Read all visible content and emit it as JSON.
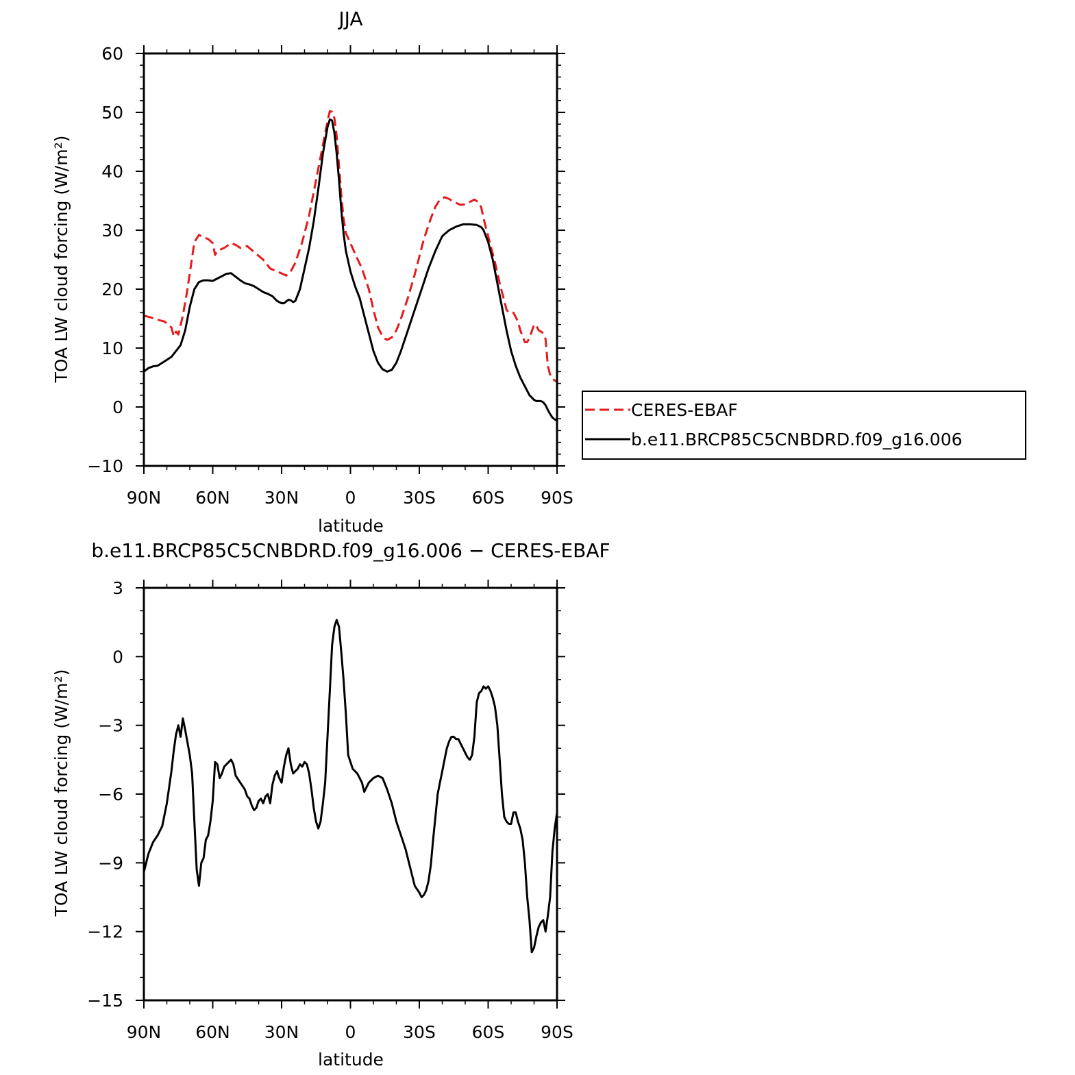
{
  "colors": {
    "observation": "#e41a1c",
    "model": "#000000",
    "axes": "#000000",
    "background": "#ffffff"
  },
  "legend": {
    "placement": "right of top panel",
    "entries": [
      {
        "label": "CERES-EBAF",
        "color": "#e41a1c",
        "style": "dashed"
      },
      {
        "label": "b.e11.BRCP85C5CNBDRD.f09_g16.006",
        "color": "#000000",
        "style": "solid"
      }
    ]
  },
  "chart_data": [
    {
      "type": "line",
      "title": "JJA",
      "xlabel": "latitude",
      "ylabel": "TOA LW cloud forcing (W/m²)",
      "xlim": [
        90,
        -90
      ],
      "ylim": [
        -10,
        60
      ],
      "x_ticks": [
        90,
        60,
        30,
        0,
        -30,
        -60,
        -90
      ],
      "x_tick_labels": [
        "90N",
        "60N",
        "30N",
        "0",
        "30S",
        "60S",
        "90S"
      ],
      "y_ticks": [
        -10,
        0,
        10,
        20,
        30,
        40,
        50,
        60
      ],
      "y_tick_labels": [
        "−10",
        "0",
        "10",
        "20",
        "30",
        "40",
        "50",
        "60"
      ],
      "grid": false,
      "series": [
        {
          "name": "CERES-EBAF",
          "color": "#e41a1c",
          "style": "dashed",
          "x": [
            90,
            87,
            84,
            81,
            78,
            77,
            76,
            75,
            73,
            71,
            68,
            66,
            64,
            62,
            60,
            59,
            58,
            55,
            52,
            50,
            48,
            45,
            42,
            38,
            35,
            32,
            29,
            28,
            26,
            24,
            21,
            18,
            15,
            12,
            10,
            9,
            8,
            7,
            6,
            5,
            4,
            3,
            2,
            0,
            -2,
            -5,
            -8,
            -10,
            -12,
            -14,
            -15,
            -16,
            -18,
            -20,
            -22,
            -25,
            -28,
            -30,
            -32,
            -35,
            -37,
            -39,
            -41,
            -43,
            -45,
            -48,
            -50,
            -52,
            -54,
            -56,
            -57,
            -58,
            -59,
            -60,
            -61,
            -62,
            -63,
            -65,
            -67,
            -68,
            -69,
            -71,
            -73,
            -74,
            -76,
            -77,
            -78,
            -79,
            -80,
            -81,
            -82,
            -83,
            -84,
            -85,
            -86,
            -87,
            -88,
            -89,
            -90
          ],
          "y": [
            15.5,
            15.2,
            14.8,
            14.5,
            13.5,
            12.0,
            12.8,
            12.3,
            15.5,
            20.0,
            28.0,
            29.2,
            28.8,
            28.5,
            27.8,
            25.8,
            26.5,
            27.0,
            27.8,
            27.5,
            27.0,
            27.3,
            26.3,
            25.0,
            23.5,
            23.0,
            22.5,
            22.3,
            23.0,
            24.5,
            28.0,
            32.5,
            38.5,
            44.5,
            48.5,
            50.2,
            50.1,
            49.0,
            46.0,
            41.0,
            36.0,
            32.0,
            29.5,
            27.8,
            26.0,
            23.5,
            20.0,
            16.5,
            13.5,
            12.0,
            11.6,
            11.4,
            11.8,
            13.0,
            15.0,
            18.5,
            22.5,
            25.5,
            28.5,
            32.0,
            34.0,
            35.2,
            35.6,
            35.3,
            34.8,
            34.3,
            34.4,
            34.8,
            35.2,
            34.7,
            33.8,
            32.0,
            30.5,
            29.0,
            27.5,
            26.0,
            24.5,
            21.0,
            18.0,
            16.5,
            16.0,
            16.0,
            14.5,
            13.0,
            11.0,
            11.0,
            11.8,
            12.8,
            14.0,
            13.8,
            13.0,
            12.8,
            12.5,
            11.5,
            7.0,
            5.5,
            4.8,
            4.5,
            4.3
          ]
        },
        {
          "name": "b.e11.BRCP85C5CNBDRD.f09_g16.006",
          "color": "#000000",
          "style": "solid",
          "x": [
            90,
            89,
            88,
            86,
            84,
            82,
            80,
            78,
            76,
            74,
            72,
            70,
            68,
            66,
            64,
            62,
            60,
            58,
            56,
            54,
            52,
            50,
            48,
            46,
            44,
            42,
            40,
            38,
            36,
            34,
            32,
            30,
            29,
            28,
            27,
            26,
            25,
            24,
            22,
            20,
            18,
            16,
            14,
            12,
            10,
            9,
            8,
            7,
            6,
            5,
            4,
            3,
            2,
            0,
            -2,
            -4,
            -6,
            -8,
            -10,
            -12,
            -14,
            -16,
            -18,
            -20,
            -22,
            -25,
            -28,
            -31,
            -34,
            -37,
            -40,
            -43,
            -46,
            -49,
            -52,
            -55,
            -57,
            -58,
            -59,
            -60,
            -62,
            -64,
            -66,
            -68,
            -70,
            -72,
            -74,
            -76,
            -78,
            -80,
            -81,
            -82,
            -83,
            -84,
            -85,
            -86,
            -87,
            -88,
            -89,
            -90
          ],
          "y": [
            6.0,
            6.3,
            6.6,
            6.9,
            7.0,
            7.5,
            8.0,
            8.5,
            9.5,
            10.5,
            13.0,
            17.0,
            20.0,
            21.2,
            21.5,
            21.5,
            21.4,
            21.8,
            22.2,
            22.6,
            22.7,
            22.1,
            21.5,
            21.0,
            20.8,
            20.5,
            20.0,
            19.5,
            19.2,
            18.8,
            18.0,
            17.6,
            17.6,
            17.9,
            18.2,
            18.1,
            17.8,
            18.0,
            20.0,
            23.5,
            27.0,
            31.5,
            37.0,
            43.0,
            47.5,
            48.8,
            48.6,
            46.5,
            43.0,
            38.5,
            33.5,
            29.5,
            26.5,
            23.0,
            20.5,
            18.5,
            15.5,
            12.5,
            9.5,
            7.5,
            6.4,
            6.0,
            6.3,
            7.5,
            9.5,
            13.0,
            16.5,
            20.0,
            23.5,
            26.5,
            29.0,
            30.0,
            30.6,
            31.0,
            31.0,
            30.9,
            30.5,
            30.0,
            29.0,
            28.0,
            25.0,
            21.0,
            17.0,
            13.0,
            9.5,
            7.0,
            5.0,
            3.5,
            2.0,
            1.2,
            1.0,
            1.0,
            1.0,
            0.8,
            0.3,
            -0.5,
            -1.2,
            -1.8,
            -2.1,
            -2.3
          ]
        }
      ]
    },
    {
      "type": "line",
      "title": "b.e11.BRCP85C5CNBDRD.f09_g16.006 − CERES-EBAF",
      "xlabel": "latitude",
      "ylabel": "TOA LW cloud forcing (W/m²)",
      "xlim": [
        90,
        -90
      ],
      "ylim": [
        -15,
        3
      ],
      "x_ticks": [
        90,
        60,
        30,
        0,
        -30,
        -60,
        -90
      ],
      "x_tick_labels": [
        "90N",
        "60N",
        "30N",
        "0",
        "30S",
        "60S",
        "90S"
      ],
      "y_ticks": [
        -15,
        -12,
        -9,
        -6,
        -3,
        0,
        3
      ],
      "y_tick_labels": [
        "−15",
        "−12",
        "−9",
        "−6",
        "−3",
        "0",
        "3"
      ],
      "grid": false,
      "series": [
        {
          "color": "#000000",
          "style": "solid",
          "x": [
            90,
            88,
            86,
            84,
            83,
            82,
            80,
            78,
            77,
            76,
            75,
            74,
            73,
            72,
            70,
            69,
            68,
            67,
            66,
            65,
            64,
            63,
            62,
            61,
            60,
            59,
            58,
            57,
            56,
            55,
            54,
            53,
            52,
            51,
            50,
            48,
            46,
            45,
            44,
            43,
            42,
            41,
            40,
            39,
            38,
            37,
            36,
            35,
            34,
            33,
            32,
            31,
            30,
            29,
            28,
            27,
            26,
            25,
            24,
            23,
            22,
            21,
            20,
            19,
            18,
            17,
            16,
            15,
            14,
            13,
            12,
            11,
            10,
            9,
            8,
            7,
            6,
            5,
            4,
            3,
            2,
            1,
            0,
            -1,
            -2,
            -3,
            -4,
            -5,
            -6,
            -7,
            -8,
            -9,
            -10,
            -12,
            -14,
            -16,
            -18,
            -20,
            -22,
            -24,
            -26,
            -28,
            -30,
            -31,
            -32,
            -33,
            -34,
            -35,
            -36,
            -37,
            -38,
            -39,
            -40,
            -41,
            -42,
            -43,
            -44,
            -45,
            -46,
            -47,
            -48,
            -49,
            -50,
            -51,
            -52,
            -53,
            -54,
            -55,
            -56,
            -57,
            -58,
            -59,
            -60,
            -61,
            -62,
            -63,
            -64,
            -65,
            -66,
            -67,
            -68,
            -69,
            -70,
            -71,
            -72,
            -73,
            -74,
            -75,
            -76,
            -77,
            -78,
            -79,
            -80,
            -81,
            -82,
            -83,
            -84,
            -85,
            -86,
            -87,
            -88,
            -89,
            -90
          ],
          "y": [
            -9.4,
            -8.6,
            -8.1,
            -7.8,
            -7.6,
            -7.4,
            -6.4,
            -5.0,
            -4.1,
            -3.4,
            -3.0,
            -3.5,
            -2.7,
            -3.2,
            -4.3,
            -5.1,
            -7.2,
            -9.3,
            -10.0,
            -9.0,
            -8.8,
            -8.0,
            -7.8,
            -7.2,
            -6.3,
            -4.6,
            -4.7,
            -5.3,
            -5.1,
            -4.8,
            -4.7,
            -4.6,
            -4.5,
            -4.7,
            -5.2,
            -5.5,
            -5.8,
            -6.1,
            -6.2,
            -6.5,
            -6.7,
            -6.6,
            -6.3,
            -6.2,
            -6.4,
            -6.1,
            -6.0,
            -6.4,
            -5.6,
            -5.2,
            -5.0,
            -5.3,
            -5.5,
            -4.8,
            -4.3,
            -4.0,
            -4.7,
            -5.1,
            -5.0,
            -4.9,
            -4.7,
            -4.8,
            -4.6,
            -4.7,
            -5.1,
            -5.8,
            -6.6,
            -7.2,
            -7.5,
            -7.2,
            -6.4,
            -5.5,
            -3.5,
            -1.5,
            0.5,
            1.3,
            1.6,
            1.3,
            0.2,
            -1.0,
            -2.5,
            -4.3,
            -4.6,
            -4.9,
            -5.0,
            -5.1,
            -5.3,
            -5.5,
            -5.9,
            -5.7,
            -5.5,
            -5.4,
            -5.3,
            -5.2,
            -5.3,
            -5.8,
            -6.4,
            -7.2,
            -7.8,
            -8.4,
            -9.2,
            -10.0,
            -10.3,
            -10.5,
            -10.4,
            -10.2,
            -9.8,
            -9.1,
            -8.0,
            -7.0,
            -6.0,
            -5.5,
            -5.0,
            -4.5,
            -4.0,
            -3.7,
            -3.5,
            -3.5,
            -3.6,
            -3.6,
            -3.8,
            -4.0,
            -4.2,
            -4.4,
            -4.5,
            -4.3,
            -3.5,
            -2.0,
            -1.6,
            -1.5,
            -1.3,
            -1.4,
            -1.3,
            -1.5,
            -1.8,
            -2.2,
            -3.0,
            -4.5,
            -6.0,
            -7.0,
            -7.2,
            -7.3,
            -7.3,
            -6.8,
            -6.8,
            -7.2,
            -7.5,
            -8.0,
            -9.0,
            -10.5,
            -11.5,
            -12.9,
            -12.7,
            -12.2,
            -11.8,
            -11.6,
            -11.5,
            -12.0,
            -11.3,
            -10.5,
            -8.5,
            -7.5,
            -6.8
          ]
        }
      ]
    }
  ]
}
